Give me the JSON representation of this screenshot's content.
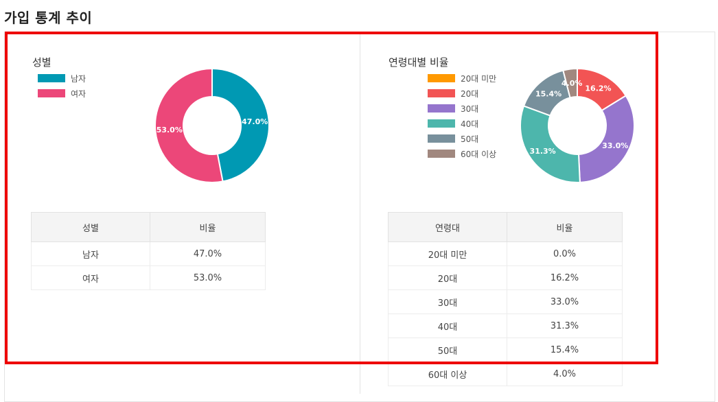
{
  "page": {
    "title": "가입 통계 추이"
  },
  "gender": {
    "title": "성별",
    "table_headers": [
      "성별",
      "비율"
    ],
    "rows": [
      {
        "label": "남자",
        "value": "47.0%"
      },
      {
        "label": "여자",
        "value": "53.0%"
      }
    ]
  },
  "age": {
    "title": "연령대별 비율",
    "table_headers": [
      "연령대",
      "비율"
    ],
    "rows": [
      {
        "label": "20대 미만",
        "value": "0.0%"
      },
      {
        "label": "20대",
        "value": "16.2%"
      },
      {
        "label": "30대",
        "value": "33.0%"
      },
      {
        "label": "40대",
        "value": "31.3%"
      },
      {
        "label": "50대",
        "value": "15.4%"
      },
      {
        "label": "60대 이상",
        "value": "4.0%"
      }
    ]
  },
  "chart_data": [
    {
      "type": "pie",
      "title": "성별",
      "donut": true,
      "legend_position": "top-left",
      "categories": [
        "남자",
        "여자"
      ],
      "values": [
        47.0,
        53.0
      ],
      "data_labels": [
        "47.0%",
        "53.0%"
      ],
      "colors": [
        "#0099b3",
        "#ec4779"
      ]
    },
    {
      "type": "pie",
      "title": "연령대별 비율",
      "donut": true,
      "legend_position": "left",
      "categories": [
        "20대 미만",
        "20대",
        "30대",
        "40대",
        "50대",
        "60대 이상"
      ],
      "values": [
        0.0,
        16.2,
        33.0,
        31.3,
        15.4,
        4.0
      ],
      "data_labels": [
        "",
        "16.2%",
        "33.0%",
        "31.3%",
        "15.4%",
        "4.0%"
      ],
      "colors": [
        "#ff9900",
        "#f25454",
        "#9575cd",
        "#4db6ac",
        "#78909c",
        "#a1887f"
      ]
    }
  ]
}
